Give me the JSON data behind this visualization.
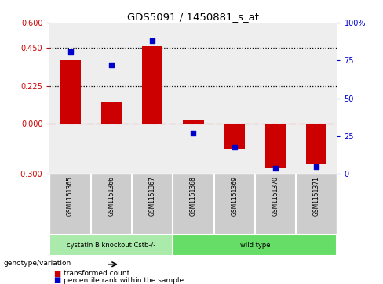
{
  "title": "GDS5091 / 1450881_s_at",
  "samples": [
    "GSM1151365",
    "GSM1151366",
    "GSM1151367",
    "GSM1151368",
    "GSM1151369",
    "GSM1151370",
    "GSM1151371"
  ],
  "bar_values": [
    0.375,
    0.13,
    0.46,
    0.02,
    -0.155,
    -0.265,
    -0.24
  ],
  "dot_values": [
    81,
    72,
    88,
    27,
    18,
    4,
    5
  ],
  "ylim_left": [
    -0.3,
    0.6
  ],
  "ylim_right": [
    0,
    100
  ],
  "yticks_left": [
    -0.3,
    0,
    0.225,
    0.45,
    0.6
  ],
  "yticks_right": [
    0,
    25,
    50,
    75,
    100
  ],
  "hlines": [
    0.225,
    0.45
  ],
  "bar_color": "#cc0000",
  "dot_color": "#0000cc",
  "zero_line_color": "#cc0000",
  "hline_color": "black",
  "groups": [
    {
      "label": "cystatin B knockout Cstb-/-",
      "indices": [
        0,
        1,
        2
      ],
      "color": "#aaeaaa"
    },
    {
      "label": "wild type",
      "indices": [
        3,
        4,
        5,
        6
      ],
      "color": "#66dd66"
    }
  ],
  "genotype_label": "genotype/variation",
  "legend_red": "transformed count",
  "legend_blue": "percentile rank within the sample",
  "bg_color": "#ffffff",
  "plot_bg": "#eeeeee",
  "right_axis_color": "#0000cc",
  "left_axis_color": "#cc0000",
  "cell_bg": "#cccccc",
  "cell_border": "#ffffff"
}
